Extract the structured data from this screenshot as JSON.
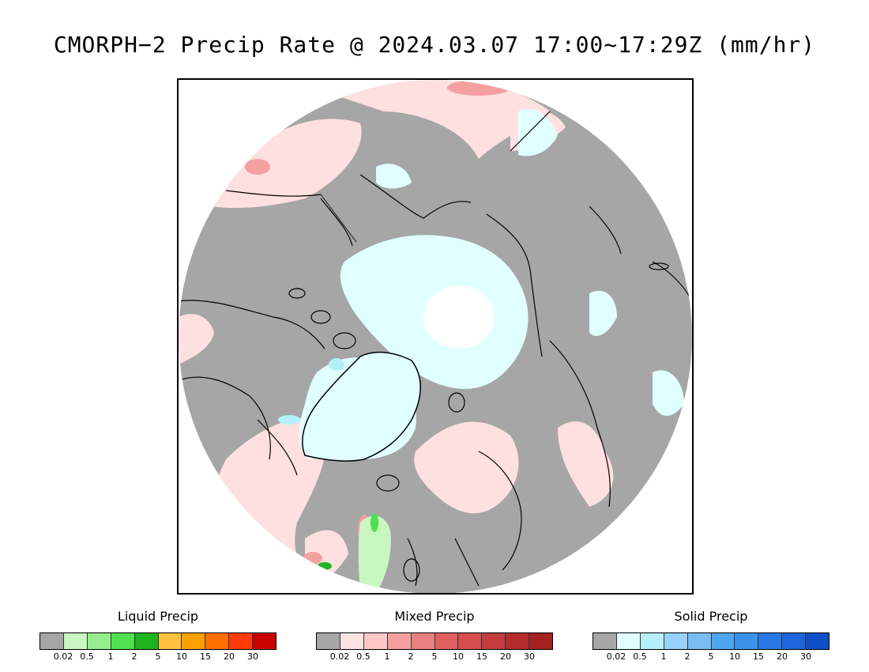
{
  "title": "CMORPH−2 Precip Rate @ 2024.03.07 17:00~17:29Z (mm/hr)",
  "map": {
    "projection": "north-polar-stereographic",
    "background_color": "#a6a6a6",
    "coastline_color": "#000000"
  },
  "legends": [
    {
      "title": "Liquid Precip",
      "colors": [
        "#a6a6a6",
        "#c8f8c0",
        "#96ee8c",
        "#50e050",
        "#1eb41e",
        "#ffc040",
        "#ffa000",
        "#ff7000",
        "#ff3c0a",
        "#c80000"
      ],
      "ticks": [
        "0.02",
        "0.5",
        "1",
        "2",
        "5",
        "10",
        "15",
        "20",
        "30"
      ]
    },
    {
      "title": "Mixed Precip",
      "colors": [
        "#a6a6a6",
        "#ffe4e4",
        "#ffc8c8",
        "#f4a0a0",
        "#e88080",
        "#e06060",
        "#d44e4e",
        "#c43c3c",
        "#b42c2c",
        "#a42222"
      ],
      "ticks": [
        "0.02",
        "0.5",
        "1",
        "2",
        "5",
        "10",
        "15",
        "20",
        "30"
      ]
    },
    {
      "title": "Solid Precip",
      "colors": [
        "#a6a6a6",
        "#e0ffff",
        "#b4f0fa",
        "#96d2fa",
        "#78bef5",
        "#50a5f0",
        "#3c91eb",
        "#2878e6",
        "#1e64dc",
        "#0f50c8"
      ],
      "ticks": [
        "0.02",
        "0.5",
        "1",
        "2",
        "5",
        "10",
        "15",
        "20",
        "30"
      ]
    }
  ]
}
